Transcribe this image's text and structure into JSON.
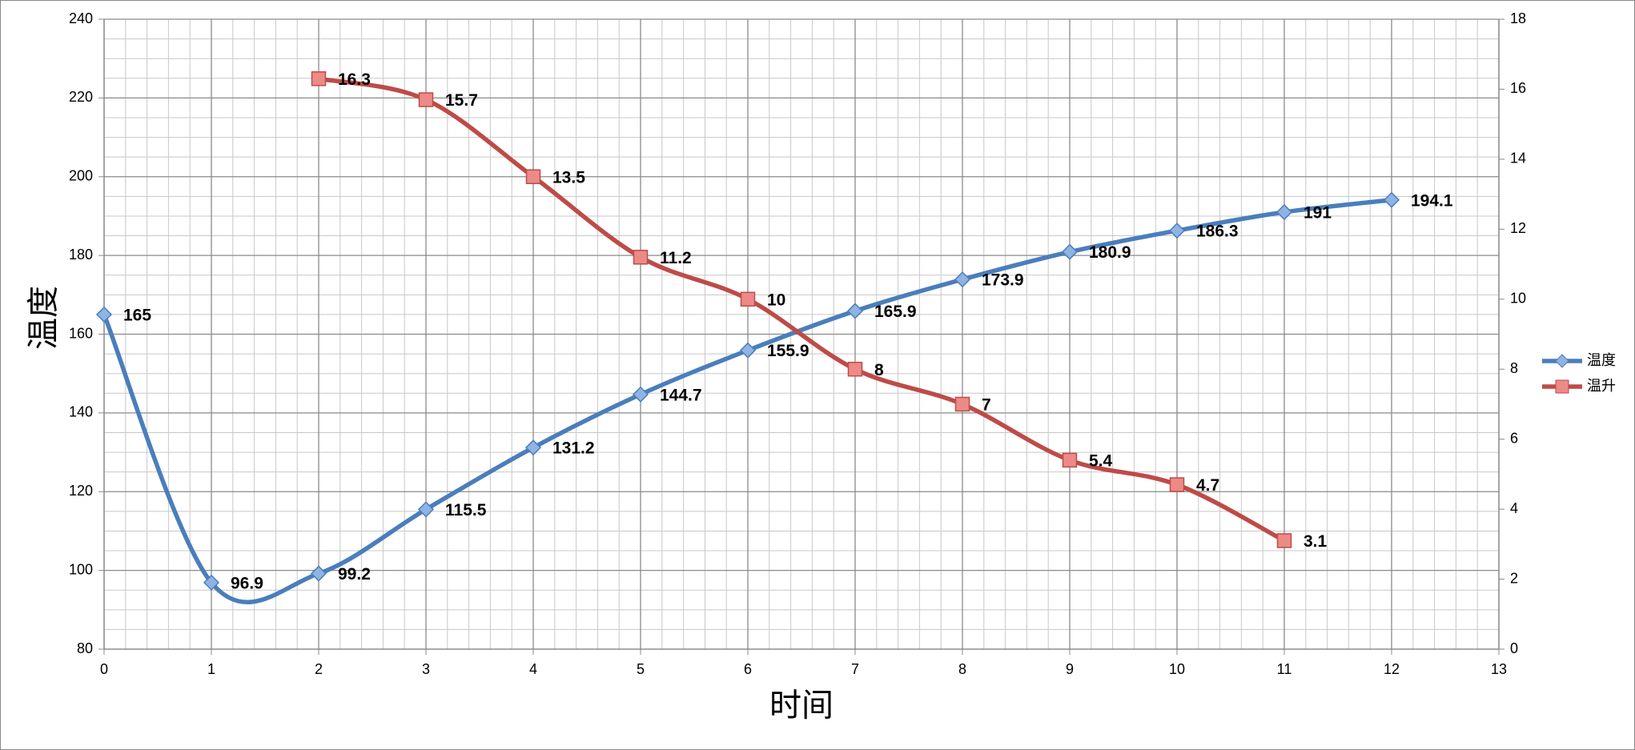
{
  "chart_data": {
    "type": "line",
    "x_label": "时间",
    "y_label": "温度",
    "x": [
      0,
      1,
      2,
      3,
      4,
      5,
      6,
      7,
      8,
      9,
      10,
      11,
      12
    ],
    "series": [
      {
        "name": "温度",
        "color": "#4a7ebb",
        "marker": "diamond",
        "marker_fill": "#8fb3e3",
        "values": [
          165,
          96.9,
          99.2,
          115.5,
          131.2,
          144.7,
          155.9,
          165.9,
          173.9,
          180.9,
          186.3,
          191,
          194.1
        ]
      },
      {
        "name": "温升",
        "color": "#be4b48",
        "marker": "square",
        "marker_fill": "#ec8a87",
        "axis": "y2",
        "values": [
          null,
          null,
          16.3,
          15.7,
          13.5,
          11.2,
          10,
          8,
          7,
          5.4,
          4.7,
          3.1,
          null
        ]
      }
    ],
    "xlim": [
      0,
      13
    ],
    "xticks": [
      0,
      1,
      2,
      3,
      4,
      5,
      6,
      7,
      8,
      9,
      10,
      11,
      12,
      13
    ],
    "ylim": [
      80,
      240
    ],
    "yticks": [
      80,
      100,
      120,
      140,
      160,
      180,
      200,
      220,
      240
    ],
    "y2lim": [
      0,
      18
    ],
    "y2ticks": [
      0,
      2,
      4,
      6,
      8,
      10,
      12,
      14,
      16,
      18
    ],
    "grid": true,
    "minor_grid": {
      "x": 5,
      "y": 4
    },
    "smooth": true,
    "data_labels": true,
    "legend": "right"
  }
}
